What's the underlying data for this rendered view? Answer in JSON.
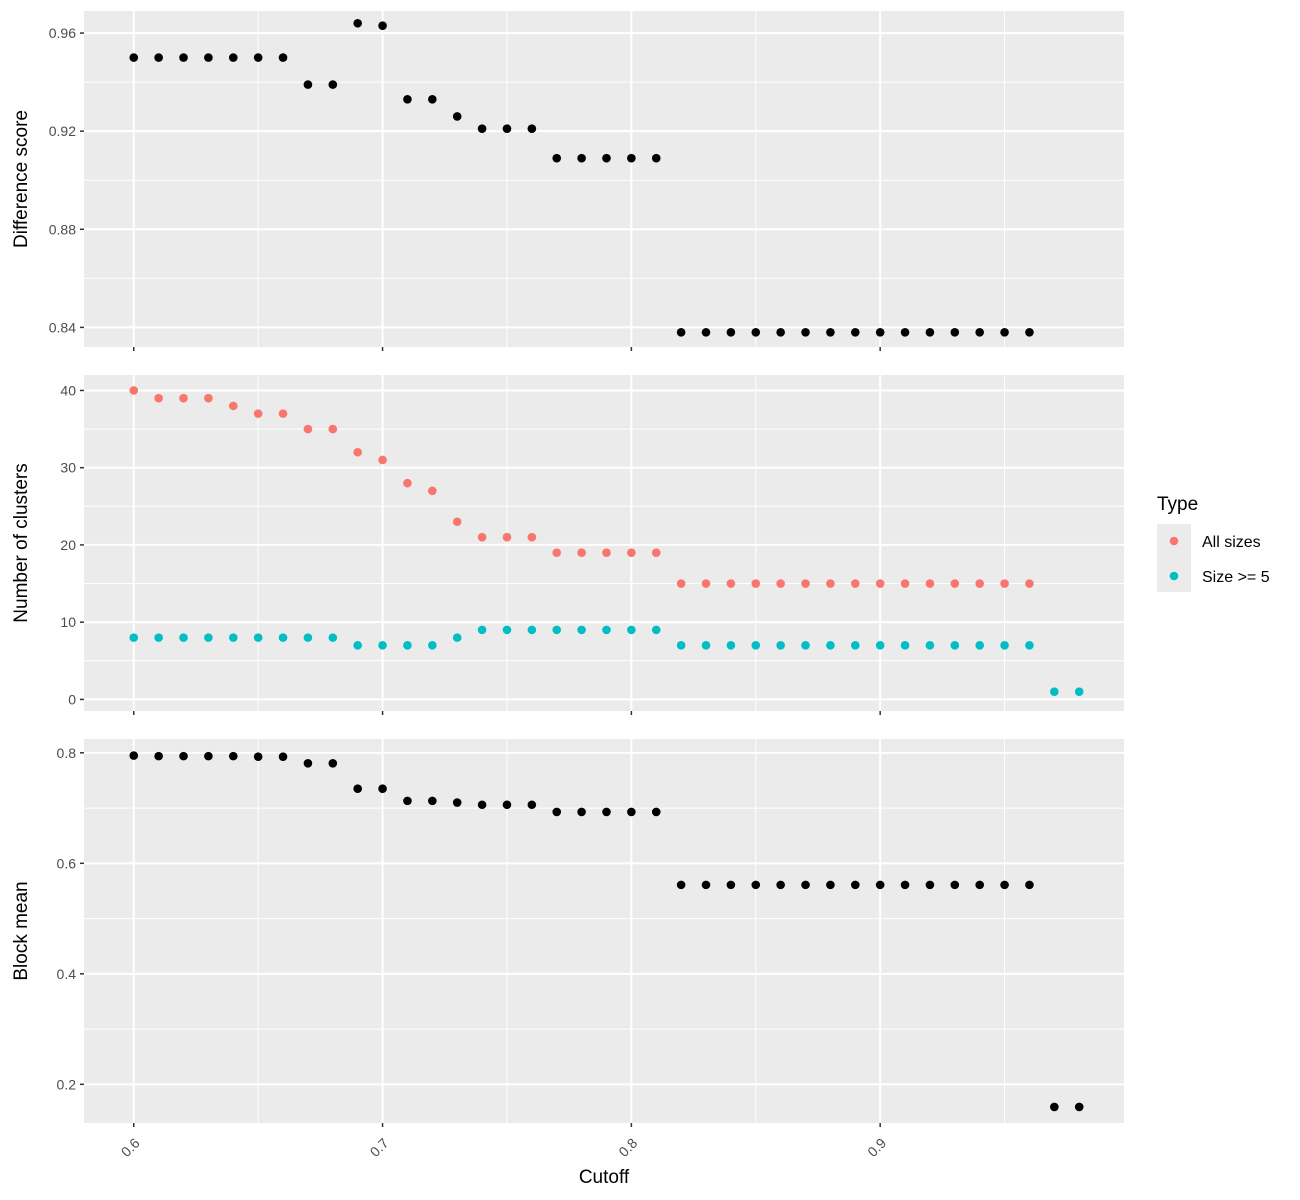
{
  "chart_data": [
    {
      "type": "scatter",
      "ylabel": "Difference score",
      "xlim": [
        0.58,
        0.998
      ],
      "ylim": [
        0.832,
        0.969
      ],
      "yticks": [
        0.84,
        0.88,
        0.92,
        0.96
      ],
      "ytick_labels": [
        "0.84",
        "0.88",
        "0.92",
        "0.96"
      ],
      "series": [
        {
          "color": "#000000",
          "x": [
            0.6,
            0.61,
            0.62,
            0.63,
            0.64,
            0.65,
            0.66,
            0.67,
            0.68,
            0.69,
            0.7,
            0.71,
            0.72,
            0.73,
            0.74,
            0.75,
            0.76,
            0.77,
            0.78,
            0.79,
            0.8,
            0.81,
            0.82,
            0.83,
            0.84,
            0.85,
            0.86,
            0.87,
            0.88,
            0.89,
            0.9,
            0.91,
            0.92,
            0.93,
            0.94,
            0.95,
            0.96
          ],
          "y": [
            0.95,
            0.95,
            0.95,
            0.95,
            0.95,
            0.95,
            0.95,
            0.939,
            0.939,
            0.964,
            0.963,
            0.933,
            0.933,
            0.926,
            0.921,
            0.921,
            0.921,
            0.909,
            0.909,
            0.909,
            0.909,
            0.909,
            0.838,
            0.838,
            0.838,
            0.838,
            0.838,
            0.838,
            0.838,
            0.838,
            0.838,
            0.838,
            0.838,
            0.838,
            0.838,
            0.838,
            0.838
          ]
        }
      ]
    },
    {
      "type": "scatter",
      "ylabel": "Number of clusters",
      "xlim": [
        0.58,
        0.998
      ],
      "ylim": [
        -1.5,
        42.0
      ],
      "yticks": [
        0,
        10,
        20,
        30,
        40
      ],
      "ytick_labels": [
        "0",
        "10",
        "20",
        "30",
        "40"
      ],
      "series": [
        {
          "name": "All sizes",
          "color": "#F8766D",
          "x": [
            0.6,
            0.61,
            0.62,
            0.63,
            0.64,
            0.65,
            0.66,
            0.67,
            0.68,
            0.69,
            0.7,
            0.71,
            0.72,
            0.73,
            0.74,
            0.75,
            0.76,
            0.77,
            0.78,
            0.79,
            0.8,
            0.81,
            0.82,
            0.83,
            0.84,
            0.85,
            0.86,
            0.87,
            0.88,
            0.89,
            0.9,
            0.91,
            0.92,
            0.93,
            0.94,
            0.95,
            0.96
          ],
          "y": [
            40,
            39,
            39,
            39,
            38,
            37,
            37,
            35,
            35,
            32,
            31,
            28,
            27,
            23,
            21,
            21,
            21,
            19,
            19,
            19,
            19,
            19,
            15,
            15,
            15,
            15,
            15,
            15,
            15,
            15,
            15,
            15,
            15,
            15,
            15,
            15,
            15
          ]
        },
        {
          "name": "Size >= 5",
          "color": "#00BFC4",
          "x": [
            0.6,
            0.61,
            0.62,
            0.63,
            0.64,
            0.65,
            0.66,
            0.67,
            0.68,
            0.69,
            0.7,
            0.71,
            0.72,
            0.73,
            0.74,
            0.75,
            0.76,
            0.77,
            0.78,
            0.79,
            0.8,
            0.81,
            0.82,
            0.83,
            0.84,
            0.85,
            0.86,
            0.87,
            0.88,
            0.89,
            0.9,
            0.91,
            0.92,
            0.93,
            0.94,
            0.95,
            0.96,
            0.97,
            0.98
          ],
          "y": [
            8,
            8,
            8,
            8,
            8,
            8,
            8,
            8,
            8,
            7,
            7,
            7,
            7,
            8,
            9,
            9,
            9,
            9,
            9,
            9,
            9,
            9,
            7,
            7,
            7,
            7,
            7,
            7,
            7,
            7,
            7,
            7,
            7,
            7,
            7,
            7,
            7,
            1,
            1
          ]
        }
      ]
    },
    {
      "type": "scatter",
      "ylabel": "Block mean",
      "xlabel": "Cutoff",
      "xlim": [
        0.58,
        0.998
      ],
      "ylim": [
        0.13,
        0.825
      ],
      "yticks": [
        0.2,
        0.4,
        0.6,
        0.8
      ],
      "ytick_labels": [
        "0.2",
        "0.4",
        "0.6",
        "0.8"
      ],
      "xticks": [
        0.6,
        0.7,
        0.8,
        0.9
      ],
      "xtick_labels": [
        "0.6",
        "0.7",
        "0.8",
        "0.9"
      ],
      "series": [
        {
          "color": "#000000",
          "x": [
            0.6,
            0.61,
            0.62,
            0.63,
            0.64,
            0.65,
            0.66,
            0.67,
            0.68,
            0.69,
            0.7,
            0.71,
            0.72,
            0.73,
            0.74,
            0.75,
            0.76,
            0.77,
            0.78,
            0.79,
            0.8,
            0.81,
            0.82,
            0.83,
            0.84,
            0.85,
            0.86,
            0.87,
            0.88,
            0.89,
            0.9,
            0.91,
            0.92,
            0.93,
            0.94,
            0.95,
            0.96,
            0.97,
            0.98
          ],
          "y": [
            0.795,
            0.794,
            0.794,
            0.794,
            0.794,
            0.793,
            0.793,
            0.781,
            0.781,
            0.735,
            0.735,
            0.713,
            0.713,
            0.71,
            0.706,
            0.706,
            0.706,
            0.693,
            0.693,
            0.693,
            0.693,
            0.693,
            0.561,
            0.561,
            0.561,
            0.561,
            0.561,
            0.561,
            0.561,
            0.561,
            0.561,
            0.561,
            0.561,
            0.561,
            0.561,
            0.561,
            0.561,
            0.159,
            0.159
          ]
        }
      ]
    }
  ],
  "legend": {
    "title": "Type",
    "entries": [
      {
        "label": "All sizes",
        "color": "#F8766D"
      },
      {
        "label": "Size >= 5",
        "color": "#00BFC4"
      }
    ]
  },
  "style": {
    "panel_background": "#EBEBEB",
    "grid_color": "#FFFFFF",
    "tick_color": "#333333"
  }
}
